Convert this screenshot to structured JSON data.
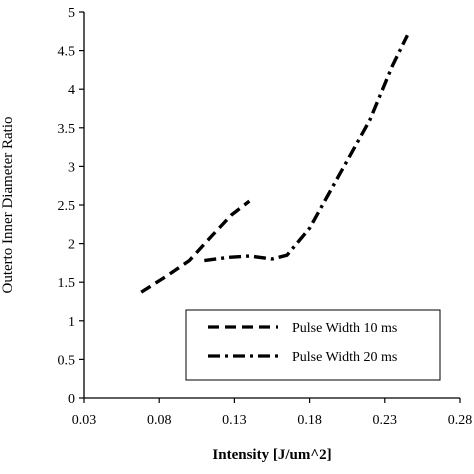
{
  "chart_data": {
    "type": "line",
    "title": "",
    "xlabel": "Intensity [J/um^2]",
    "ylabel": "Outerto Inner Diameter Ratio",
    "xlim": [
      0.03,
      0.28
    ],
    "ylim": [
      0,
      5
    ],
    "xticks": [
      "0.03",
      "0.08",
      "0.13",
      "0.18",
      "0.23",
      "0.28"
    ],
    "yticks": [
      "0",
      "0.5",
      "1",
      "1.5",
      "2",
      "2.5",
      "3",
      "3.5",
      "4",
      "4.5",
      "5"
    ],
    "grid": false,
    "legend_position": "bottom-right",
    "series": [
      {
        "name": "Pulse Width 10 ms",
        "style": "dashed",
        "color": "#000000",
        "x": [
          0.068,
          0.085,
          0.1,
          0.115,
          0.128,
          0.14
        ],
        "y": [
          1.37,
          1.58,
          1.78,
          2.1,
          2.37,
          2.55
        ]
      },
      {
        "name": "Pulse Width 20 ms",
        "style": "dash-dot",
        "color": "#000000",
        "x": [
          0.11,
          0.125,
          0.14,
          0.155,
          0.165,
          0.18,
          0.2,
          0.22,
          0.235,
          0.245
        ],
        "y": [
          1.78,
          1.82,
          1.84,
          1.8,
          1.85,
          2.2,
          2.9,
          3.6,
          4.3,
          4.7
        ]
      }
    ]
  }
}
